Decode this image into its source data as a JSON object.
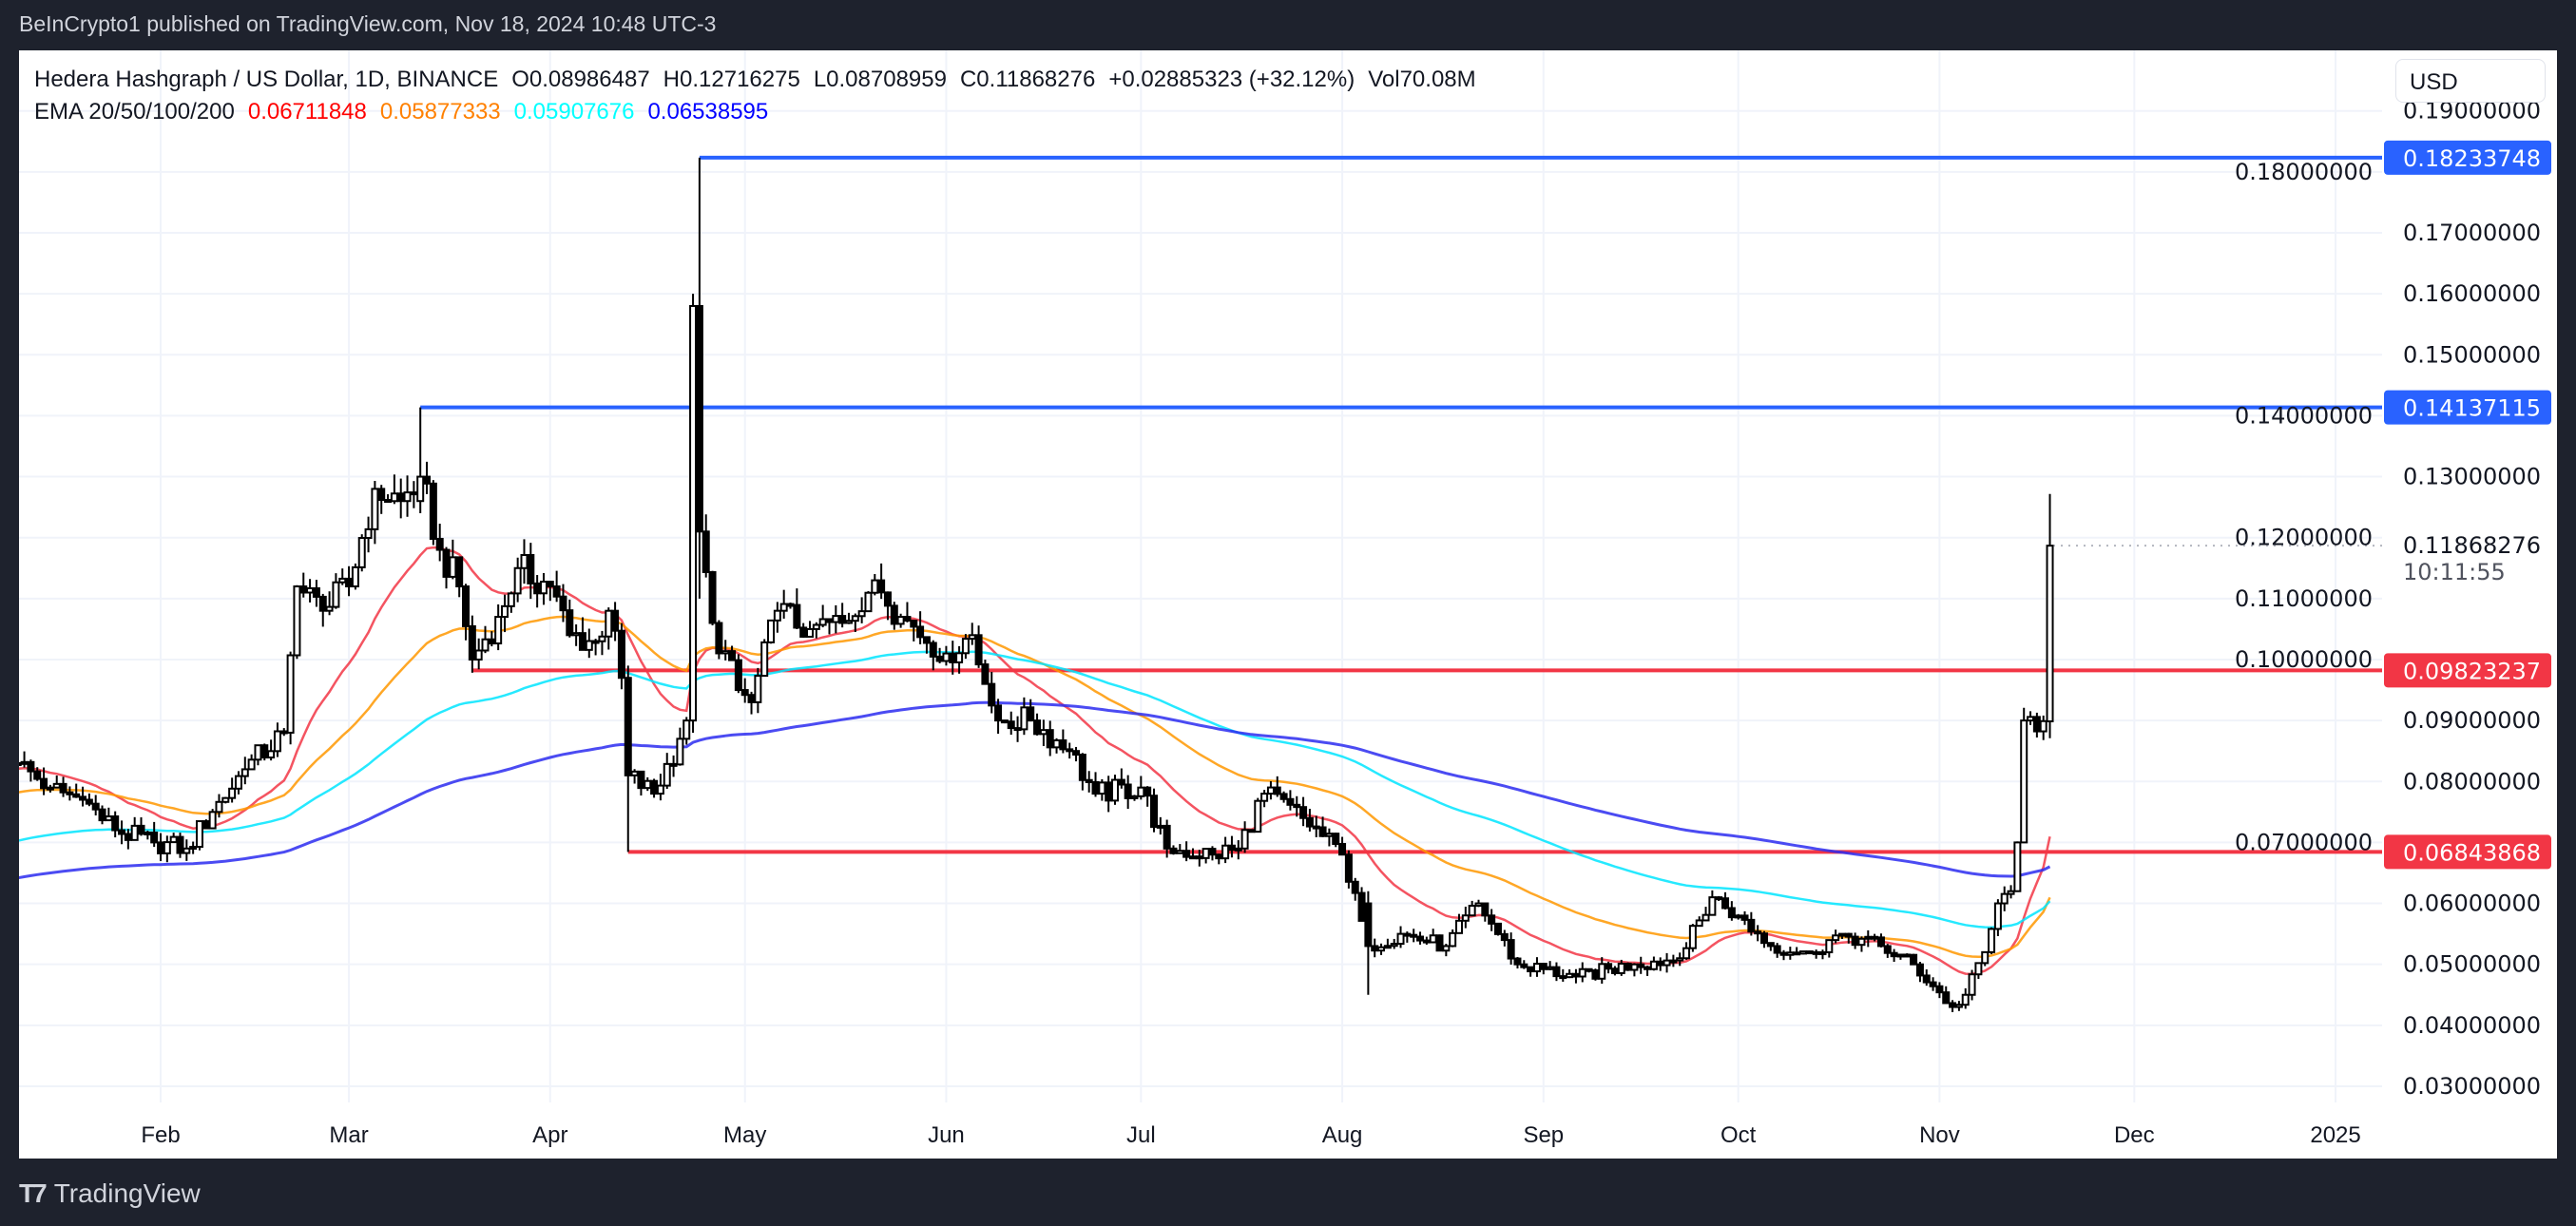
{
  "publisher_line": "BeInCrypto1 published on TradingView.com, Nov 18, 2024 10:48 UTC-3",
  "legend": {
    "symbol": "Hedera Hashgraph / US Dollar, 1D, BINANCE",
    "open": "O0.08986487",
    "high": "H0.12716275",
    "low": "L0.08708959",
    "close": "C0.11868276",
    "change": "+0.02885323 (+32.12%)",
    "volume": "Vol70.08M",
    "ema_label": "EMA 20/50/100/200",
    "ema_values": [
      "0.06711848",
      "0.05877333",
      "0.05907676",
      "0.06538595"
    ]
  },
  "currency_button": "USD",
  "brand": "TradingView",
  "colors": {
    "ema20": "#f23645",
    "ema50": "#ff9800",
    "ema100": "#00e5ff",
    "ema200": "#2b2bf0",
    "resistance": "#2962ff",
    "support": "#f23645",
    "background": "#1e222d"
  },
  "chart_data": {
    "type": "candlestick",
    "interval": "1D",
    "ylim": [
      0.025,
      0.19
    ],
    "xlim": [
      "2024-01-10",
      "2025-01-06"
    ],
    "grid": true,
    "y_ticks": [
      "0.03000000",
      "0.04000000",
      "0.05000000",
      "0.06000000",
      "0.07000000",
      "0.08000000",
      "0.09000000",
      "0.10000000",
      "0.11000000",
      "0.12000000",
      "0.13000000",
      "0.14000000",
      "0.15000000",
      "0.16000000",
      "0.17000000",
      "0.18000000",
      "0.19000000"
    ],
    "x_ticks": [
      {
        "label": "Feb",
        "date": "2024-02-01"
      },
      {
        "label": "Mar",
        "date": "2024-03-01"
      },
      {
        "label": "Apr",
        "date": "2024-04-01"
      },
      {
        "label": "May",
        "date": "2024-05-01"
      },
      {
        "label": "Jun",
        "date": "2024-06-01"
      },
      {
        "label": "Jul",
        "date": "2024-07-01"
      },
      {
        "label": "Aug",
        "date": "2024-08-01"
      },
      {
        "label": "Sep",
        "date": "2024-09-01"
      },
      {
        "label": "Oct",
        "date": "2024-10-01"
      },
      {
        "label": "Nov",
        "date": "2024-11-01"
      },
      {
        "label": "Dec",
        "date": "2024-12-01"
      },
      {
        "label": "2025",
        "date": "2025-01-01"
      }
    ],
    "close_path": [
      [
        "2024-01-10",
        0.083
      ],
      [
        "2024-01-15",
        0.079
      ],
      [
        "2024-01-20",
        0.077
      ],
      [
        "2024-01-25",
        0.072
      ],
      [
        "2024-01-31",
        0.07
      ],
      [
        "2024-02-05",
        0.069
      ],
      [
        "2024-02-09",
        0.075
      ],
      [
        "2024-02-14",
        0.082
      ],
      [
        "2024-02-20",
        0.088
      ],
      [
        "2024-02-22",
        0.112
      ],
      [
        "2024-02-26",
        0.108
      ],
      [
        "2024-03-01",
        0.112
      ],
      [
        "2024-03-05",
        0.128
      ],
      [
        "2024-03-09",
        0.126
      ],
      [
        "2024-03-12",
        0.13
      ],
      [
        "2024-03-15",
        0.118
      ],
      [
        "2024-03-18",
        0.112
      ],
      [
        "2024-03-20",
        0.1
      ],
      [
        "2024-03-24",
        0.107
      ],
      [
        "2024-03-27",
        0.115
      ],
      [
        "2024-04-01",
        0.112
      ],
      [
        "2024-04-04",
        0.104
      ],
      [
        "2024-04-08",
        0.103
      ],
      [
        "2024-04-10",
        0.108
      ],
      [
        "2024-04-12",
        0.097
      ],
      [
        "2024-04-13",
        0.081
      ],
      [
        "2024-04-17",
        0.078
      ],
      [
        "2024-04-21",
        0.087
      ],
      [
        "2024-04-22",
        0.09
      ],
      [
        "2024-04-23",
        0.158
      ],
      [
        "2024-04-24",
        0.121
      ],
      [
        "2024-04-26",
        0.106
      ],
      [
        "2024-04-30",
        0.095
      ],
      [
        "2024-05-02",
        0.093
      ],
      [
        "2024-05-06",
        0.108
      ],
      [
        "2024-05-11",
        0.105
      ],
      [
        "2024-05-16",
        0.106
      ],
      [
        "2024-05-21",
        0.113
      ],
      [
        "2024-05-25",
        0.107
      ],
      [
        "2024-06-01",
        0.101
      ],
      [
        "2024-06-05",
        0.104
      ],
      [
        "2024-06-07",
        0.096
      ],
      [
        "2024-06-09",
        0.09
      ],
      [
        "2024-06-14",
        0.09
      ],
      [
        "2024-06-20",
        0.085
      ],
      [
        "2024-06-24",
        0.078
      ],
      [
        "2024-07-01",
        0.079
      ],
      [
        "2024-07-05",
        0.069
      ],
      [
        "2024-07-12",
        0.068
      ],
      [
        "2024-07-16",
        0.069
      ],
      [
        "2024-07-20",
        0.078
      ],
      [
        "2024-07-26",
        0.074
      ],
      [
        "2024-08-01",
        0.068
      ],
      [
        "2024-08-05",
        0.053
      ],
      [
        "2024-08-10",
        0.055
      ],
      [
        "2024-08-17",
        0.053
      ],
      [
        "2024-08-22",
        0.06
      ],
      [
        "2024-08-28",
        0.05
      ],
      [
        "2024-09-06",
        0.048
      ],
      [
        "2024-09-15",
        0.05
      ],
      [
        "2024-09-22",
        0.051
      ],
      [
        "2024-09-27",
        0.061
      ],
      [
        "2024-10-01",
        0.058
      ],
      [
        "2024-10-06",
        0.053
      ],
      [
        "2024-10-12",
        0.052
      ],
      [
        "2024-10-17",
        0.055
      ],
      [
        "2024-10-23",
        0.053
      ],
      [
        "2024-10-28",
        0.05
      ],
      [
        "2024-11-03",
        0.043
      ],
      [
        "2024-11-05",
        0.045
      ],
      [
        "2024-11-08",
        0.052
      ],
      [
        "2024-11-10",
        0.06
      ],
      [
        "2024-11-12",
        0.062
      ],
      [
        "2024-11-13",
        0.07
      ],
      [
        "2024-11-14",
        0.09
      ],
      [
        "2024-11-17",
        0.0899
      ],
      [
        "2024-11-18",
        0.11868276
      ]
    ],
    "key_candles": [
      {
        "date": "2024-04-23",
        "open": 0.09,
        "high": 0.16,
        "low": 0.088,
        "close": 0.158
      },
      {
        "date": "2024-04-24",
        "open": 0.158,
        "high": 0.18233748,
        "low": 0.11,
        "close": 0.121
      },
      {
        "date": "2024-04-13",
        "open": 0.097,
        "high": 0.099,
        "low": 0.06843868,
        "close": 0.081
      },
      {
        "date": "2024-03-12",
        "open": 0.126,
        "high": 0.14137115,
        "low": 0.124,
        "close": 0.13
      },
      {
        "date": "2024-08-05",
        "open": 0.06,
        "high": 0.062,
        "low": 0.045,
        "close": 0.053
      },
      {
        "date": "2024-11-18",
        "open": 0.08986487,
        "high": 0.12716275,
        "low": 0.08708959,
        "close": 0.11868276
      }
    ],
    "ema_periods": [
      20,
      50,
      100,
      200
    ],
    "horizontal_levels": [
      {
        "price": 0.18233748,
        "label": "0.18233748",
        "from": "2024-04-24",
        "kind": "resistance"
      },
      {
        "price": 0.14137115,
        "label": "0.14137115",
        "from": "2024-03-12",
        "kind": "resistance"
      },
      {
        "price": 0.09823237,
        "label": "0.09823237",
        "from": "2024-03-20",
        "kind": "support"
      },
      {
        "price": 0.06843868,
        "label": "0.06843868",
        "from": "2024-04-13",
        "kind": "support"
      }
    ],
    "last_price": {
      "label": "0.11868276",
      "value": 0.11868276,
      "countdown": "10:11:55"
    }
  }
}
